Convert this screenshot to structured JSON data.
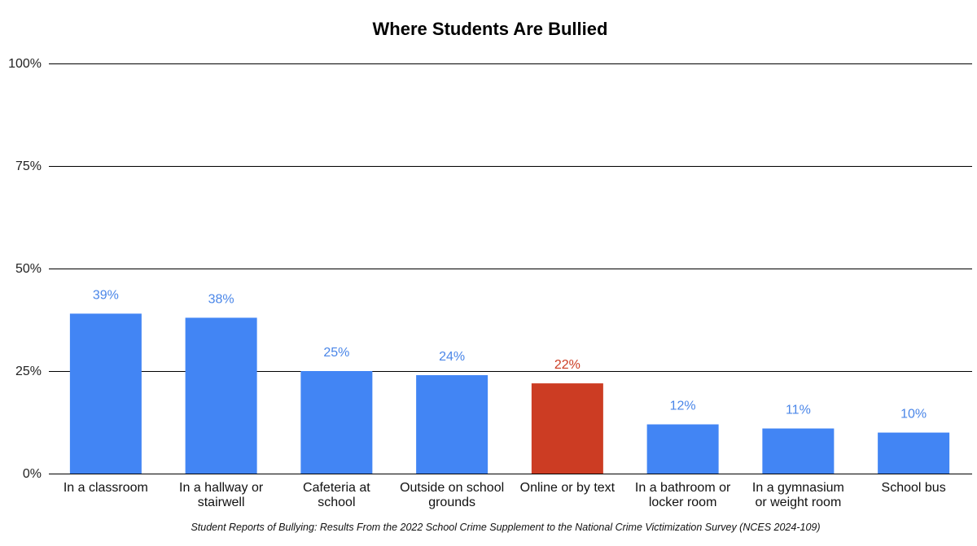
{
  "chart_data": {
    "type": "bar",
    "title": "Where Students Are Bullied",
    "categories": [
      [
        "In a classroom"
      ],
      [
        "In a hallway or",
        "stairwell"
      ],
      [
        "Cafeteria at",
        "school"
      ],
      [
        "Outside on school",
        "grounds"
      ],
      [
        "Online or by text"
      ],
      [
        "In a bathroom or",
        "locker room"
      ],
      [
        "In a gymnasium",
        "or weight room"
      ],
      [
        "School bus"
      ]
    ],
    "values": [
      39,
      38,
      25,
      24,
      22,
      12,
      11,
      10
    ],
    "data_labels": [
      "39%",
      "38%",
      "25%",
      "24%",
      "22%",
      "12%",
      "11%",
      "10%"
    ],
    "colors": [
      "#4285F4",
      "#4285F4",
      "#4285F4",
      "#4285F4",
      "#CC3C23",
      "#4285F4",
      "#4285F4",
      "#4285F4"
    ],
    "label_colors": [
      "#4A86E8",
      "#4A86E8",
      "#4A86E8",
      "#4A86E8",
      "#CC3C23",
      "#4A86E8",
      "#4A86E8",
      "#4A86E8"
    ],
    "highlighted_category": "Online or by text",
    "ylim": [
      0,
      100
    ],
    "yticks": [
      0,
      25,
      50,
      75,
      100
    ],
    "ytick_labels": [
      "0%",
      "25%",
      "50%",
      "75%",
      "100%"
    ],
    "xlabel": "",
    "ylabel": "",
    "grid": true,
    "legend": "none"
  },
  "source": "Student Reports of Bullying: Results From the 2022 School Crime Supplement to the National Crime Victimization Survey (NCES 2024-109)"
}
